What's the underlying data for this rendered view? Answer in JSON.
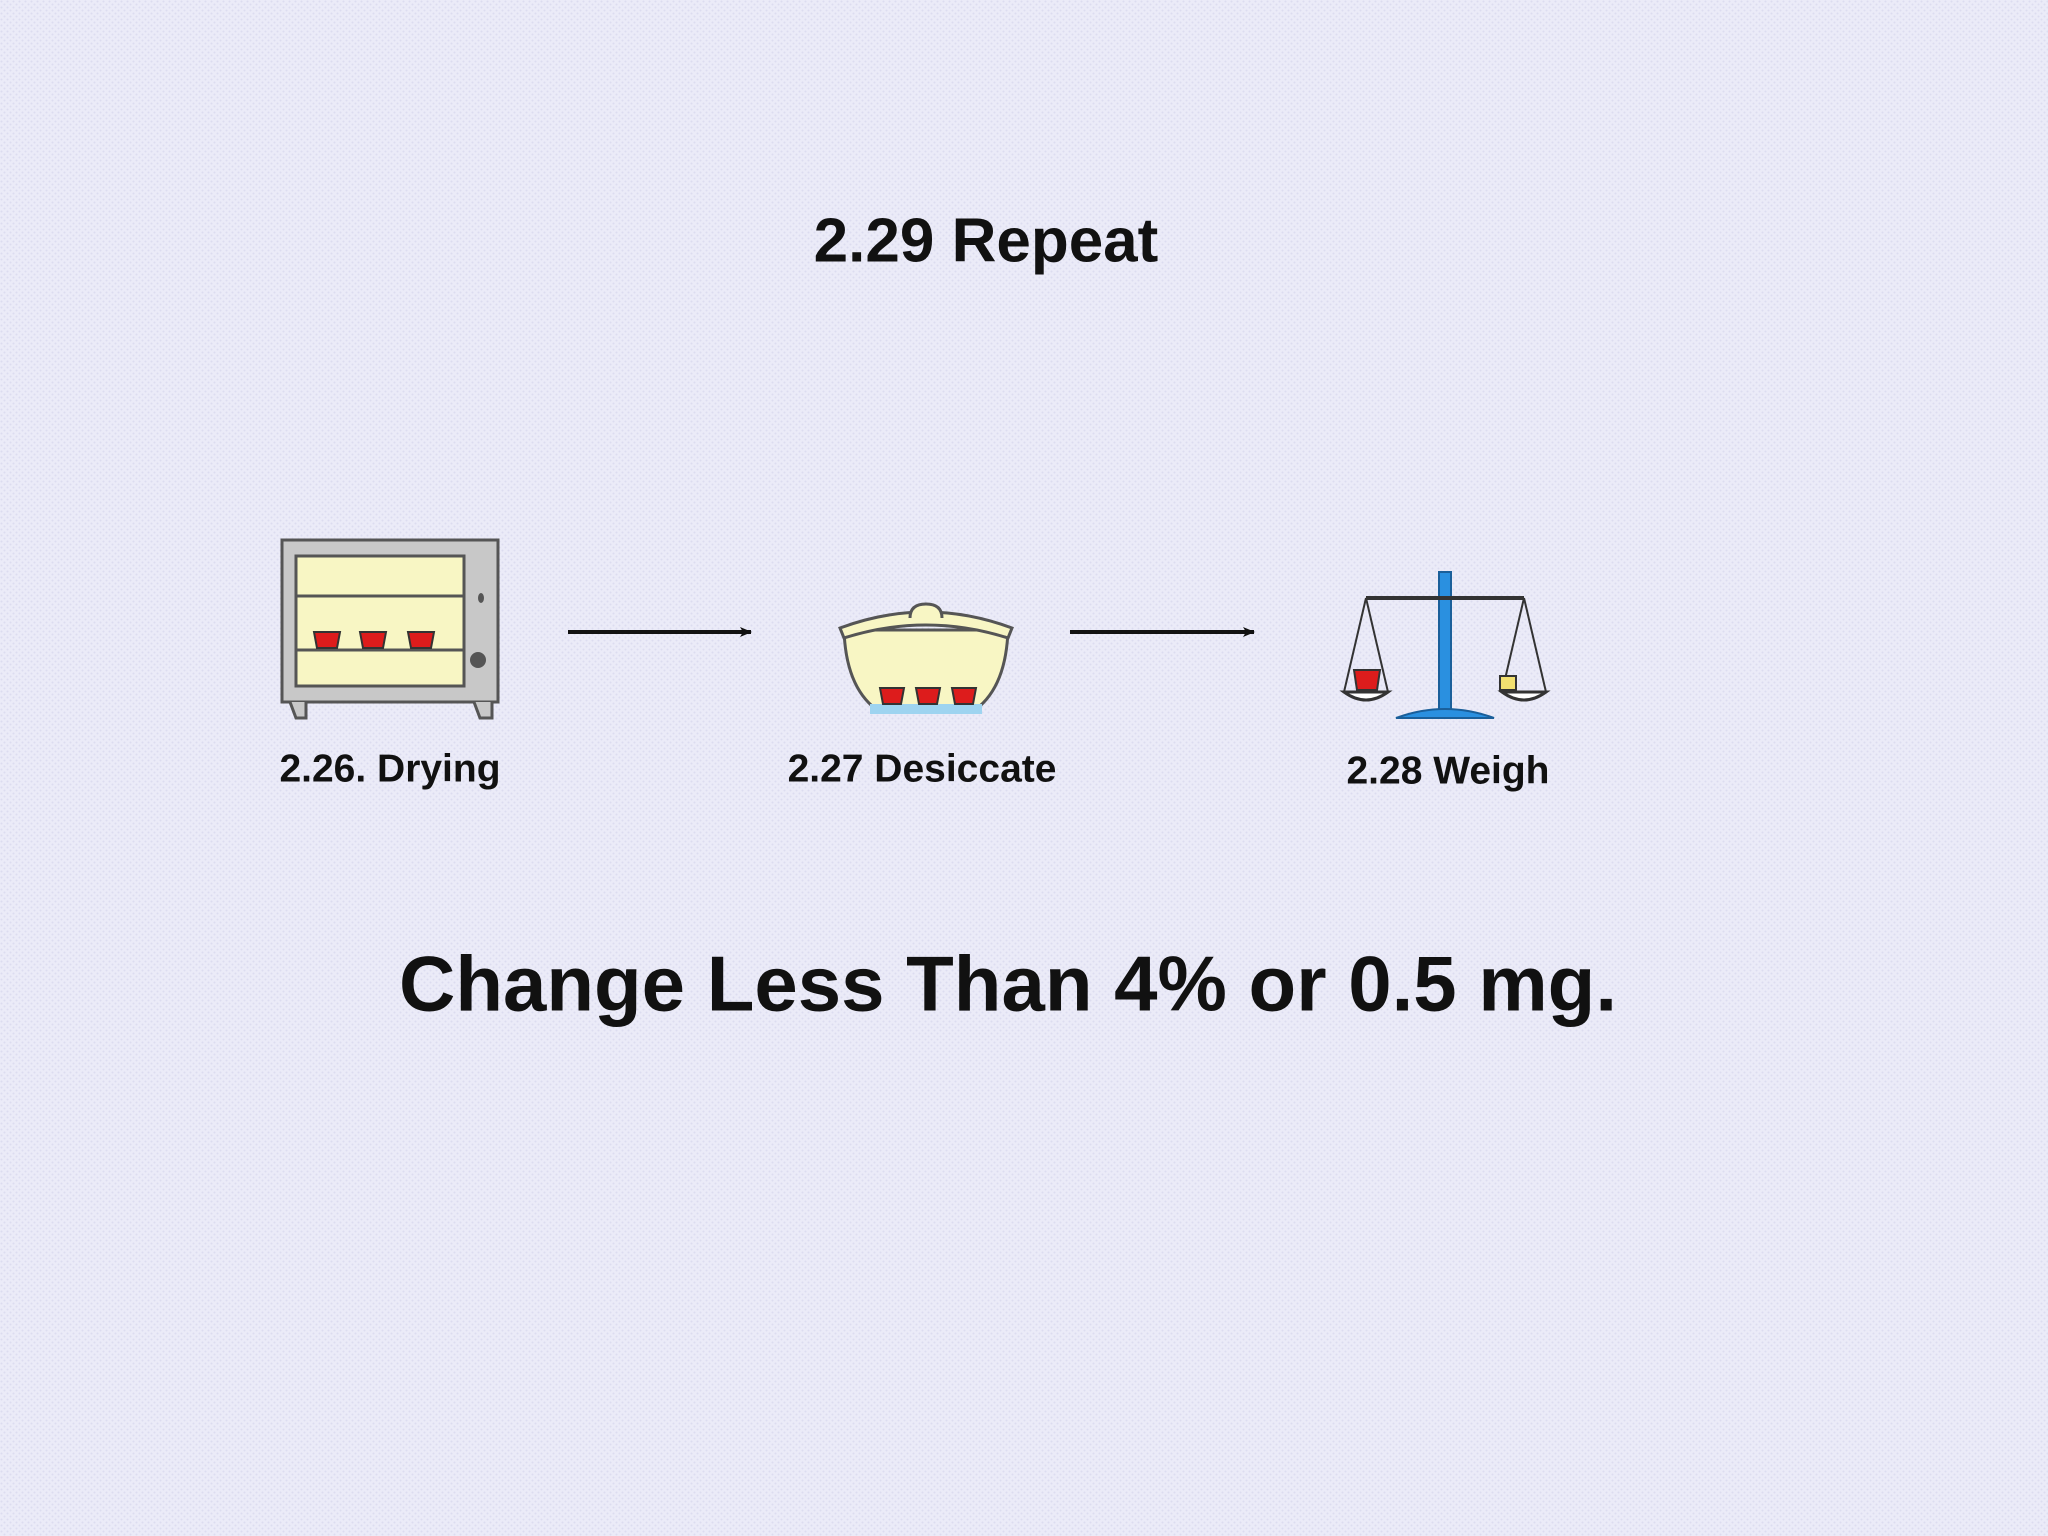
{
  "title": "2.29 Repeat",
  "steps": [
    {
      "label": "2.26. Drying"
    },
    {
      "label": "2.27 Desiccate"
    },
    {
      "label": "2.28 Weigh"
    }
  ],
  "note": "Change Less Than 4% or 0.5 mg."
}
